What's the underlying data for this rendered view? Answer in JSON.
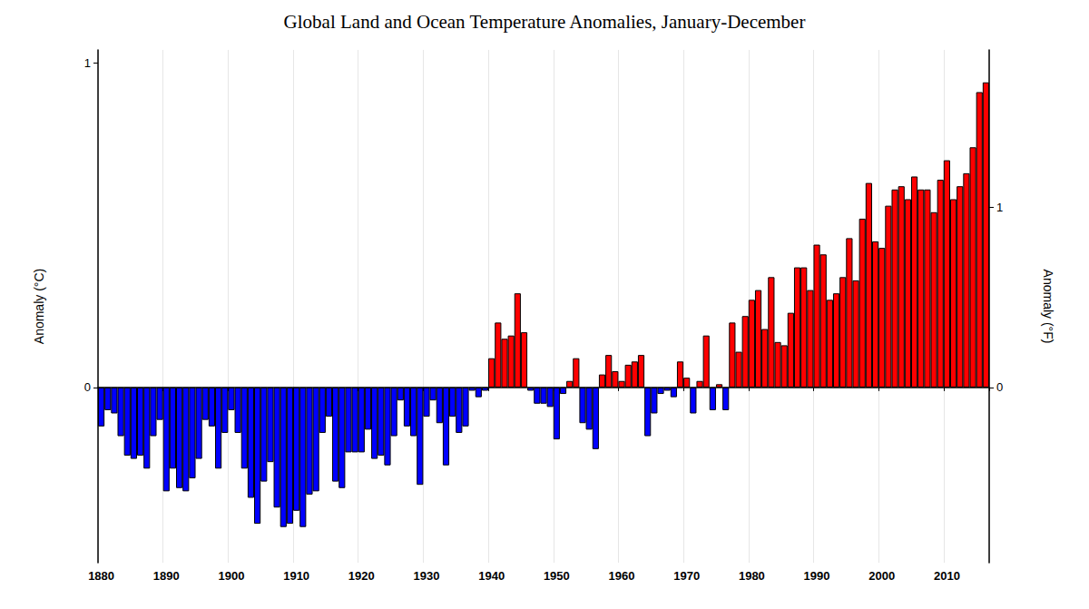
{
  "chart_data": {
    "type": "bar",
    "title": "Global Land and Ocean Temperature Anomalies, January-December",
    "ylabel": "Anomaly (°C)",
    "y2label": "Anomaly (°F)",
    "categories": [
      "1880",
      null,
      null,
      null,
      null,
      null,
      null,
      null,
      null,
      null,
      "1890",
      null,
      null,
      null,
      null,
      null,
      null,
      null,
      null,
      null,
      "1900",
      null,
      null,
      null,
      null,
      null,
      null,
      null,
      null,
      null,
      "1910",
      null,
      null,
      null,
      null,
      null,
      null,
      null,
      null,
      null,
      "1920",
      null,
      null,
      null,
      null,
      null,
      null,
      null,
      null,
      null,
      "1930",
      null,
      null,
      null,
      null,
      null,
      null,
      null,
      null,
      null,
      "1940",
      null,
      null,
      null,
      null,
      null,
      null,
      null,
      null,
      null,
      "1950",
      null,
      null,
      null,
      null,
      null,
      null,
      null,
      null,
      null,
      "1960",
      null,
      null,
      null,
      null,
      null,
      null,
      null,
      null,
      null,
      "1970",
      null,
      null,
      null,
      null,
      null,
      null,
      null,
      null,
      null,
      "1980",
      null,
      null,
      null,
      null,
      null,
      null,
      null,
      null,
      null,
      "1990",
      null,
      null,
      null,
      null,
      null,
      null,
      null,
      null,
      null,
      "2000",
      null,
      null,
      null,
      null,
      null,
      null,
      null,
      null,
      null,
      "2010",
      null,
      null,
      null,
      null,
      null,
      null
    ],
    "values": [
      -0.12,
      -0.07,
      -0.08,
      -0.15,
      -0.21,
      -0.22,
      -0.21,
      -0.25,
      -0.15,
      -0.1,
      -0.32,
      -0.25,
      -0.31,
      -0.32,
      -0.28,
      -0.22,
      -0.1,
      -0.12,
      -0.25,
      -0.14,
      -0.07,
      -0.14,
      -0.25,
      -0.34,
      -0.42,
      -0.29,
      -0.23,
      -0.37,
      -0.43,
      -0.42,
      -0.38,
      -0.43,
      -0.33,
      -0.32,
      -0.14,
      -0.09,
      -0.29,
      -0.31,
      -0.2,
      -0.2,
      -0.2,
      -0.13,
      -0.22,
      -0.21,
      -0.24,
      -0.15,
      -0.04,
      -0.12,
      -0.15,
      -0.3,
      -0.09,
      -0.04,
      -0.11,
      -0.24,
      -0.09,
      -0.14,
      -0.12,
      -0.01,
      -0.03,
      -0.01,
      0.09,
      0.2,
      0.15,
      0.16,
      0.29,
      0.17,
      -0.01,
      -0.05,
      -0.05,
      -0.06,
      -0.16,
      -0.02,
      0.02,
      0.09,
      -0.11,
      -0.13,
      -0.19,
      0.04,
      0.1,
      0.05,
      0.02,
      0.07,
      0.08,
      0.1,
      -0.15,
      -0.08,
      -0.02,
      -0.01,
      -0.03,
      0.08,
      0.03,
      -0.08,
      0.02,
      0.16,
      -0.07,
      0.01,
      -0.07,
      0.2,
      0.11,
      0.22,
      0.27,
      0.3,
      0.18,
      0.34,
      0.14,
      0.13,
      0.23,
      0.37,
      0.37,
      0.3,
      0.44,
      0.41,
      0.27,
      0.29,
      0.34,
      0.46,
      0.33,
      0.52,
      0.63,
      0.45,
      0.43,
      0.56,
      0.61,
      0.62,
      0.58,
      0.65,
      0.61,
      0.61,
      0.54,
      0.64,
      0.7,
      0.58,
      0.62,
      0.66,
      0.74,
      0.91,
      0.94
    ],
    "colors": [
      "#0000ff",
      "#0000ff",
      "#0000ff",
      "#0000ff",
      "#0000ff",
      "#0000ff",
      "#0000ff",
      "#0000ff",
      "#0000ff",
      "#0000ff",
      "#0000ff",
      "#0000ff",
      "#0000ff",
      "#0000ff",
      "#0000ff",
      "#0000ff",
      "#0000ff",
      "#0000ff",
      "#0000ff",
      "#0000ff",
      "#0000ff",
      "#0000ff",
      "#0000ff",
      "#0000ff",
      "#0000ff",
      "#0000ff",
      "#0000ff",
      "#0000ff",
      "#0000ff",
      "#0000ff",
      "#0000ff",
      "#0000ff",
      "#0000ff",
      "#0000ff",
      "#0000ff",
      "#0000ff",
      "#0000ff",
      "#0000ff",
      "#0000ff",
      "#0000ff",
      "#0000ff",
      "#0000ff",
      "#0000ff",
      "#0000ff",
      "#0000ff",
      "#0000ff",
      "#0000ff",
      "#0000ff",
      "#0000ff",
      "#0000ff",
      "#0000ff",
      "#0000ff",
      "#0000ff",
      "#0000ff",
      "#0000ff",
      "#0000ff",
      "#0000ff",
      "#0000ff",
      "#0000ff",
      "#0000ff",
      "#ff0000",
      "#ff0000",
      "#ff0000",
      "#ff0000",
      "#ff0000",
      "#ff0000",
      "#0000ff",
      "#0000ff",
      "#0000ff",
      "#0000ff",
      "#0000ff",
      "#0000ff",
      "#ff0000",
      "#ff0000",
      "#0000ff",
      "#0000ff",
      "#0000ff",
      "#ff0000",
      "#ff0000",
      "#ff0000",
      "#ff0000",
      "#ff0000",
      "#ff0000",
      "#ff0000",
      "#0000ff",
      "#0000ff",
      "#0000ff",
      "#0000ff",
      "#0000ff",
      "#ff0000",
      "#ff0000",
      "#0000ff",
      "#ff0000",
      "#ff0000",
      "#0000ff",
      "#ff0000",
      "#0000ff",
      "#ff0000",
      "#ff0000",
      "#ff0000",
      "#ff0000",
      "#ff0000",
      "#ff0000",
      "#ff0000",
      "#ff0000",
      "#ff0000",
      "#ff0000",
      "#ff0000",
      "#ff0000",
      "#ff0000",
      "#ff0000",
      "#ff0000",
      "#ff0000",
      "#ff0000",
      "#ff0000",
      "#ff0000",
      "#ff0000",
      "#ff0000",
      "#ff0000",
      "#ff0000",
      "#ff0000",
      "#ff0000",
      "#ff0000",
      "#ff0000",
      "#ff0000",
      "#ff0000",
      "#ff0000",
      "#ff0000",
      "#ff0000",
      "#ff0000",
      "#ff0000",
      "#ff0000",
      "#ff0000",
      "#ff0000",
      "#ff0000",
      "#ff0000",
      "#ff0000"
    ],
    "ylim": [
      -0.54,
      1.04
    ],
    "yticks": [
      0,
      1
    ],
    "y2lim": [
      -0.972,
      1.872
    ],
    "y2ticks": [
      0,
      1
    ],
    "grid": true
  }
}
